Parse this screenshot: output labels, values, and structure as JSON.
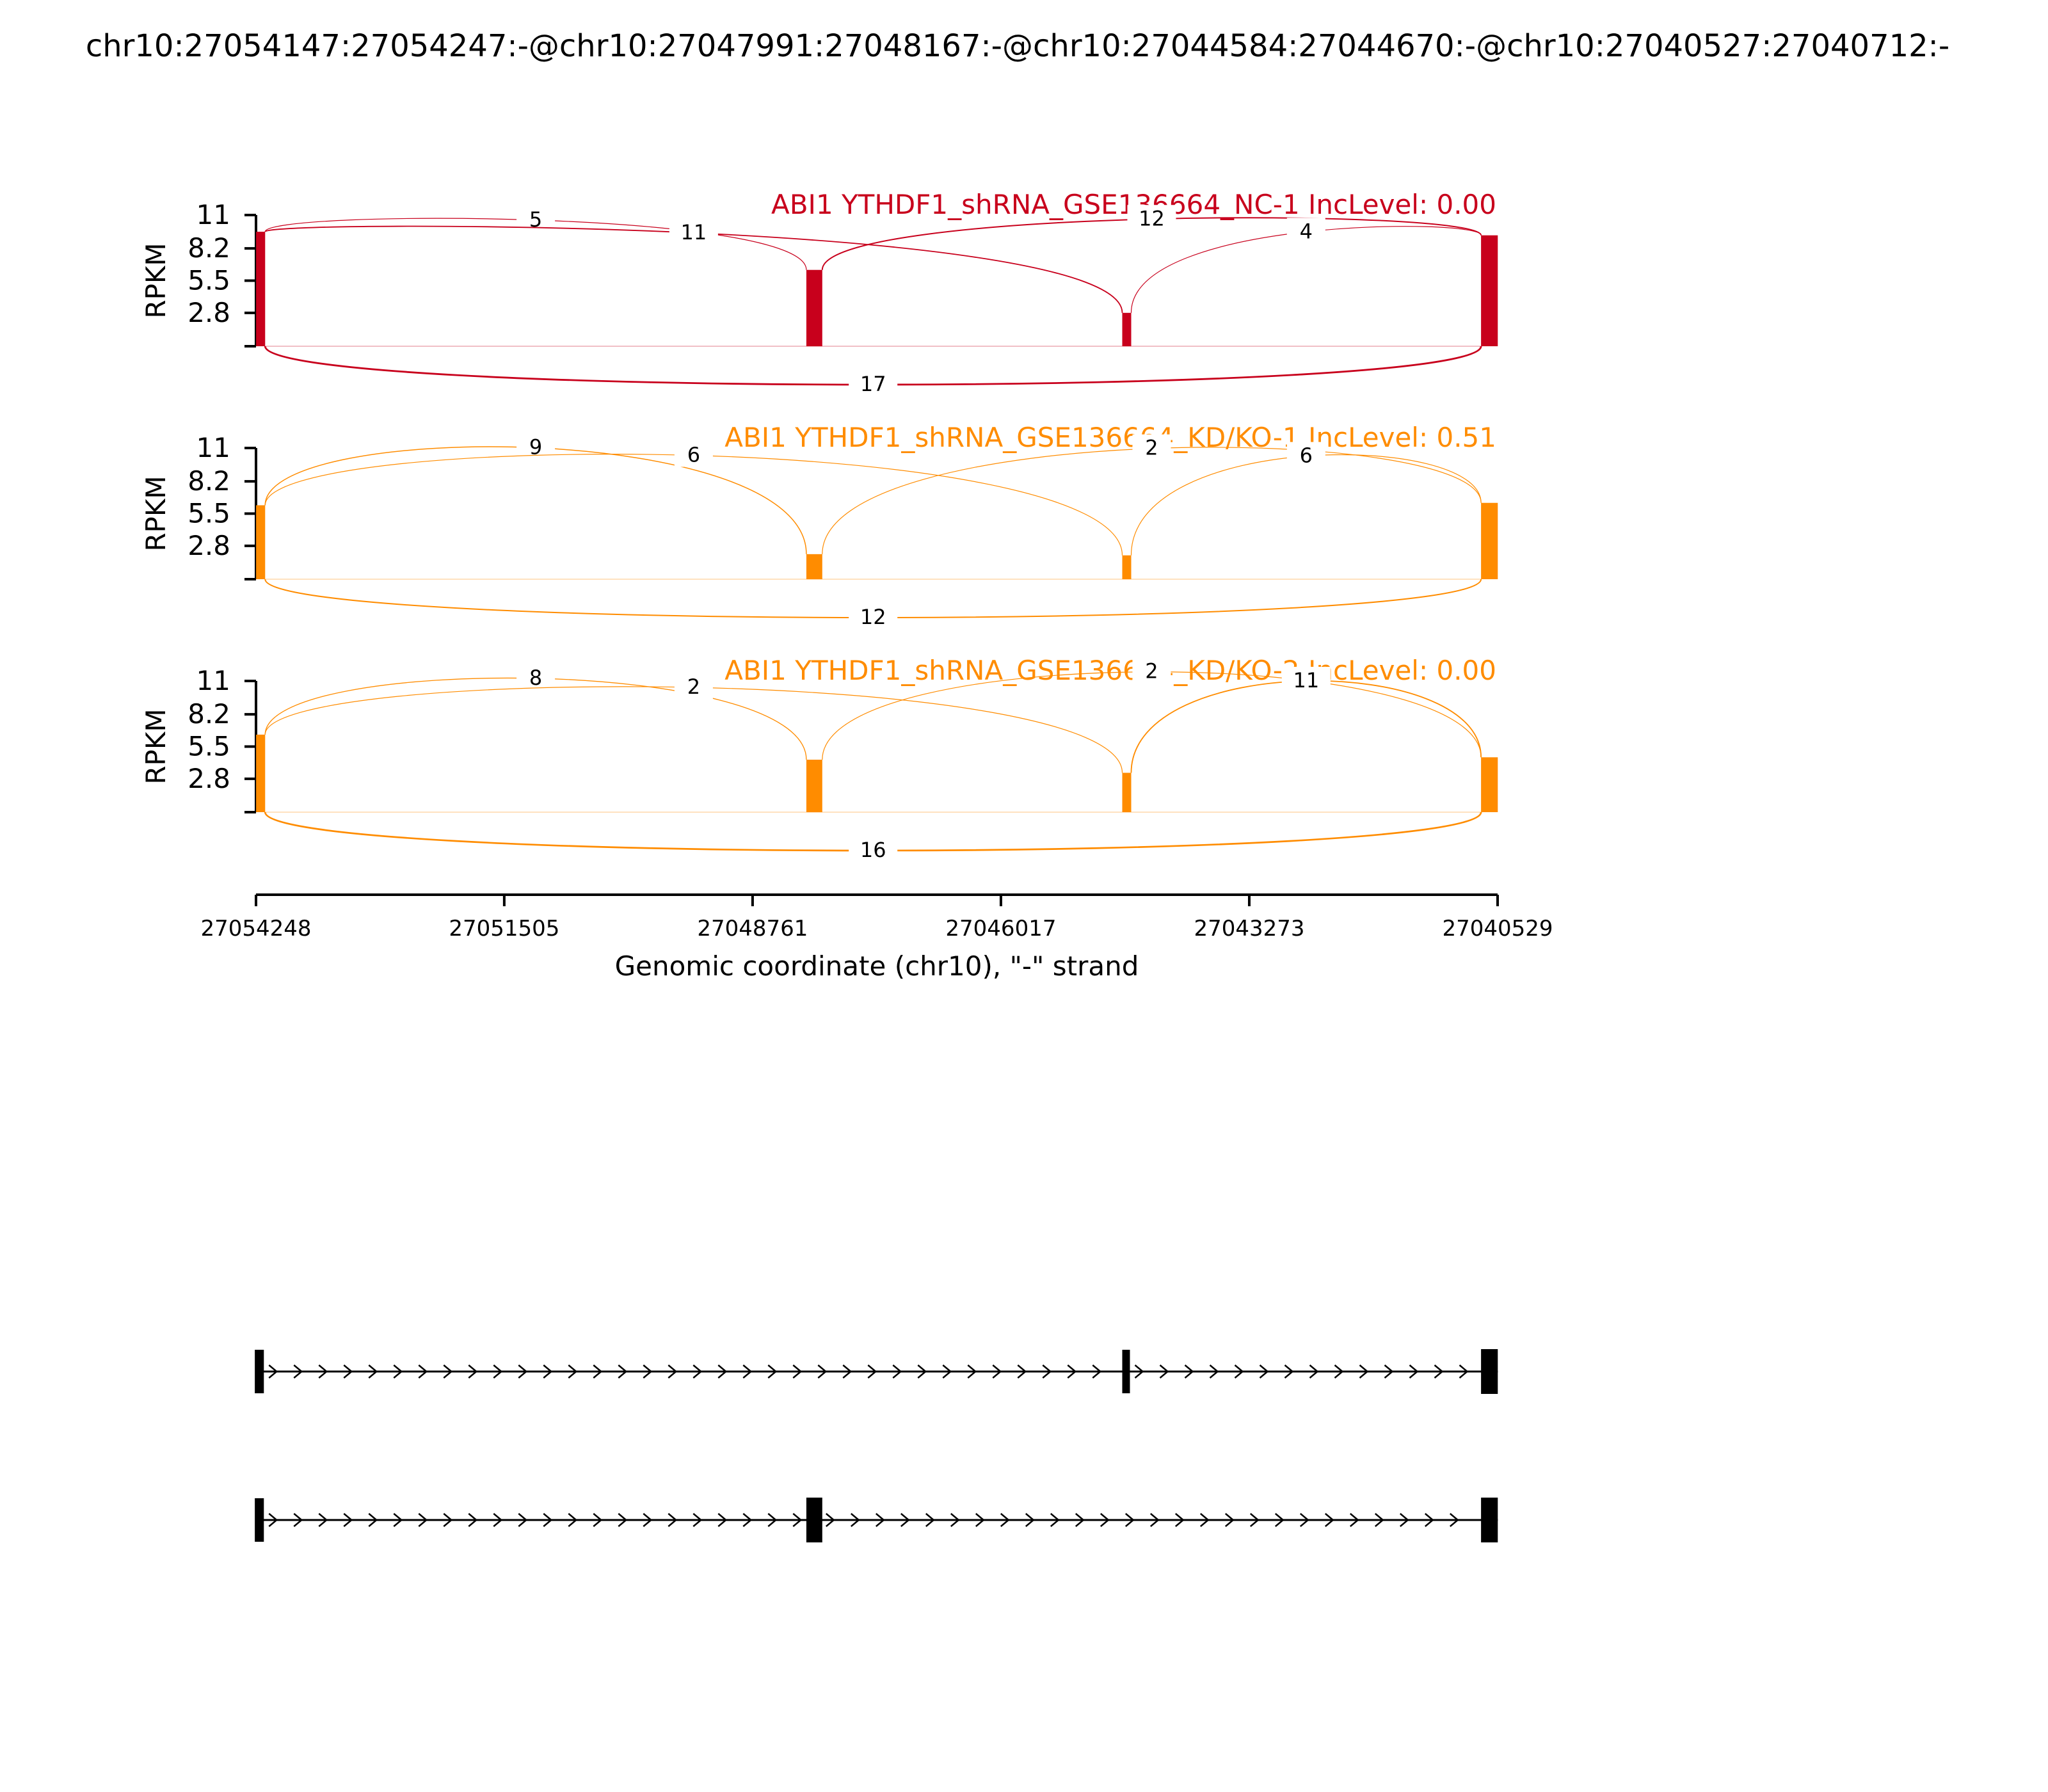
{
  "title": "chr10:27054147:27054247:-@chr10:27047991:27048167:-@chr10:27044584:27044670:-@chr10:27040527:27040712:-",
  "chart_data": {
    "type": "sashimi",
    "ylabel": "RPKM",
    "yticks": [
      "11",
      "8.2",
      "5.5",
      "2.8"
    ],
    "ylim": [
      0,
      11
    ],
    "xlabel": "Genomic coordinate (chr10), \"-\" strand",
    "xticks": [
      "27054248",
      "27051505",
      "27048761",
      "27046017",
      "27043273",
      "27040529"
    ],
    "xlim": [
      27054248,
      27040529
    ],
    "exons": [
      {
        "start": 27054247,
        "end": 27054147
      },
      {
        "start": 27048167,
        "end": 27047991
      },
      {
        "start": 27044670,
        "end": 27044584
      },
      {
        "start": 27040712,
        "end": 27040527
      }
    ],
    "panels": [
      {
        "label": "ABI1 YTHDF1_shRNA_GSE136664_NC-1 IncLevel: 0.00",
        "color": "#c8001c",
        "coverage": [
          {
            "exon": 0,
            "height": 9.6
          },
          {
            "exon": 1,
            "height": 6.4
          },
          {
            "exon": 2,
            "height": 2.8
          },
          {
            "exon": 3,
            "height": 9.3
          }
        ],
        "junctions": [
          {
            "from": 0,
            "to": 1,
            "count": "5",
            "side": "top"
          },
          {
            "from": 0,
            "to": 2,
            "count": "11",
            "side": "top"
          },
          {
            "from": 1,
            "to": 3,
            "count": "12",
            "side": "top"
          },
          {
            "from": 2,
            "to": 3,
            "count": "4",
            "side": "top"
          },
          {
            "from": 0,
            "to": 3,
            "count": "17",
            "side": "bottom"
          }
        ]
      },
      {
        "label": "ABI1 YTHDF1_shRNA_GSE136664_KD/KO-1 IncLevel: 0.51",
        "color": "#ff8c00",
        "coverage": [
          {
            "exon": 0,
            "height": 6.2
          },
          {
            "exon": 1,
            "height": 2.1
          },
          {
            "exon": 2,
            "height": 2.0
          },
          {
            "exon": 3,
            "height": 6.4
          }
        ],
        "junctions": [
          {
            "from": 0,
            "to": 1,
            "count": "9",
            "side": "top"
          },
          {
            "from": 0,
            "to": 2,
            "count": "6",
            "side": "top"
          },
          {
            "from": 1,
            "to": 3,
            "count": "2",
            "side": "top"
          },
          {
            "from": 2,
            "to": 3,
            "count": "6",
            "side": "top"
          },
          {
            "from": 0,
            "to": 3,
            "count": "12",
            "side": "bottom"
          }
        ]
      },
      {
        "label": "ABI1 YTHDF1_shRNA_GSE136664_KD/KO-2 IncLevel: 0.00",
        "color": "#ff8c00",
        "coverage": [
          {
            "exon": 0,
            "height": 6.5
          },
          {
            "exon": 1,
            "height": 4.4
          },
          {
            "exon": 2,
            "height": 3.3
          },
          {
            "exon": 3,
            "height": 4.6
          }
        ],
        "junctions": [
          {
            "from": 0,
            "to": 1,
            "count": "8",
            "side": "top"
          },
          {
            "from": 0,
            "to": 2,
            "count": "2",
            "side": "top"
          },
          {
            "from": 1,
            "to": 3,
            "count": "2",
            "side": "top"
          },
          {
            "from": 2,
            "to": 3,
            "count": "11",
            "side": "top"
          },
          {
            "from": 0,
            "to": 3,
            "count": "16",
            "side": "bottom"
          }
        ]
      }
    ],
    "isoforms": [
      {
        "exons": [
          0,
          2,
          3
        ]
      },
      {
        "exons": [
          0,
          1,
          3
        ]
      }
    ]
  }
}
